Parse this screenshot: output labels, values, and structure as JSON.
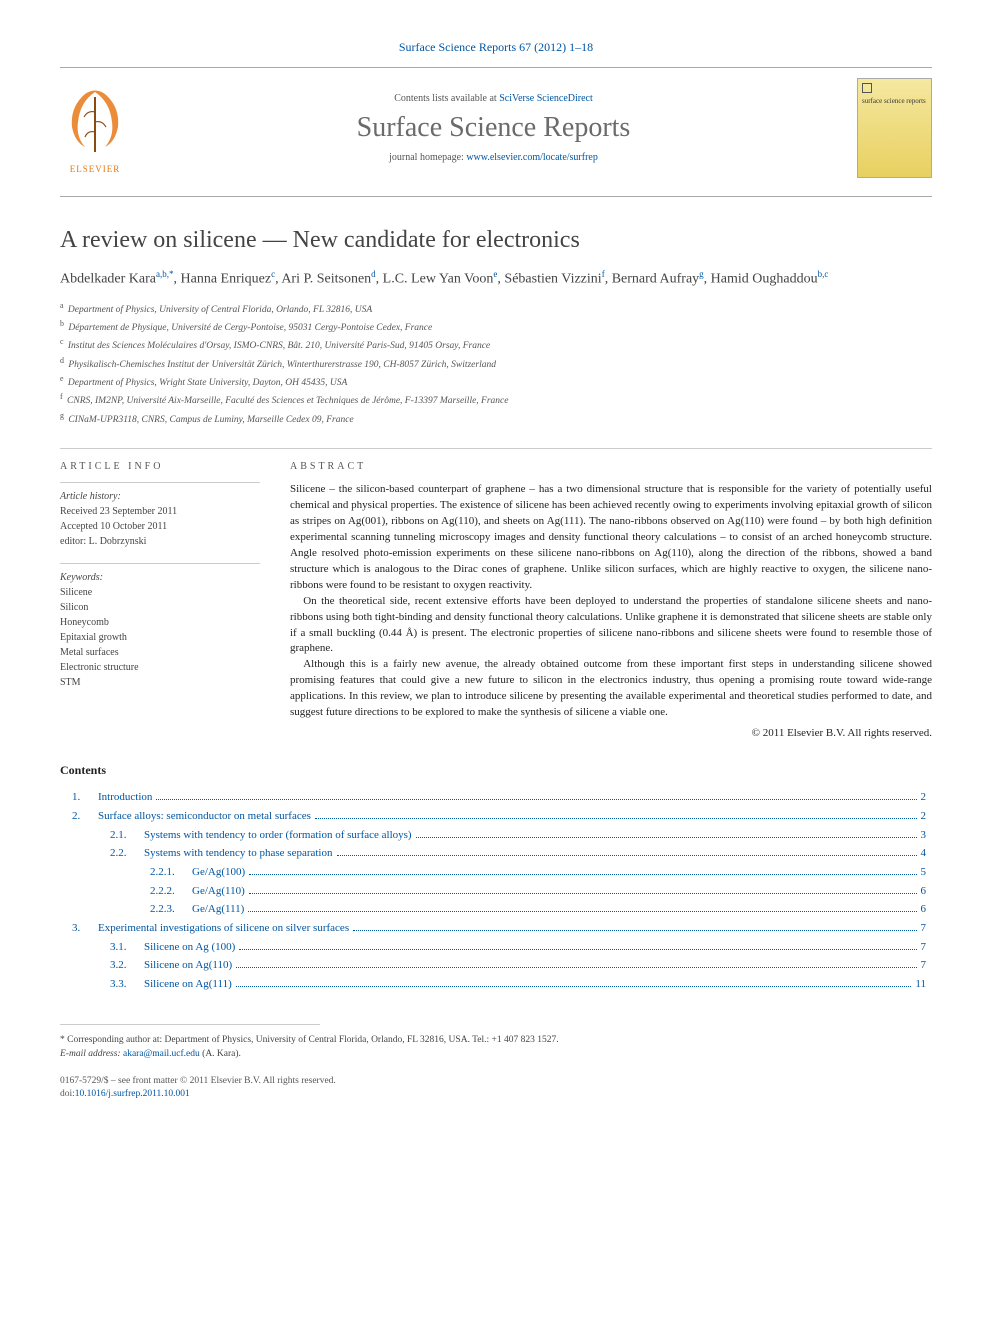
{
  "journal_ref": "Surface Science Reports 67 (2012) 1–18",
  "header": {
    "contents_prefix": "Contents lists available at ",
    "contents_link": "SciVerse ScienceDirect",
    "journal_name": "Surface Science Reports",
    "homepage_prefix": "journal homepage: ",
    "homepage_link": "www.elsevier.com/locate/surfrep",
    "logo_label": "ELSEVIER",
    "cover_label": "surface science reports"
  },
  "title": "A review on silicene — New candidate for electronics",
  "authors_html": "Abdelkader Kara|a,b,*|, Hanna Enriquez|c|, Ari P. Seitsonen|d|, L.C. Lew Yan Voon|e|, Sébastien Vizzini|f|, Bernard Aufray|g|, Hamid Oughaddou|b,c|",
  "affiliations": [
    {
      "k": "a",
      "t": "Department of Physics, University of Central Florida, Orlando, FL 32816, USA"
    },
    {
      "k": "b",
      "t": "Département de Physique, Université de Cergy-Pontoise, 95031 Cergy-Pontoise Cedex, France"
    },
    {
      "k": "c",
      "t": "Institut des Sciences Moléculaires d'Orsay, ISMO-CNRS, Bât. 210, Université Paris-Sud, 91405 Orsay, France"
    },
    {
      "k": "d",
      "t": "Physikalisch-Chemisches Institut der Universität Zürich, Winterthurerstrasse 190, CH-8057 Zürich, Switzerland"
    },
    {
      "k": "e",
      "t": "Department of Physics, Wright State University, Dayton, OH 45435, USA"
    },
    {
      "k": "f",
      "t": "CNRS, IM2NP, Université Aix-Marseille, Faculté des Sciences et Techniques de Jérôme, F-13397 Marseille, France"
    },
    {
      "k": "g",
      "t": "CINaM-UPR3118, CNRS, Campus de Luminy, Marseille Cedex 09, France"
    }
  ],
  "article_info_label": "article info",
  "abstract_label": "abstract",
  "history": {
    "head": "Article history:",
    "received": "Received 23 September 2011",
    "accepted": "Accepted 10 October 2011",
    "editor": "editor: L. Dobrzynski"
  },
  "keywords": {
    "head": "Keywords:",
    "items": [
      "Silicene",
      "Silicon",
      "Honeycomb",
      "Epitaxial growth",
      "Metal surfaces",
      "Electronic structure",
      "STM"
    ]
  },
  "abstract": {
    "p1": "Silicene – the silicon-based counterpart of graphene – has a two dimensional structure that is responsible for the variety of potentially useful chemical and physical properties. The existence of silicene has been achieved recently owing to experiments involving epitaxial growth of silicon as stripes on Ag(001), ribbons on Ag(110), and sheets on Ag(111). The nano-ribbons observed on Ag(110) were found – by both high definition experimental scanning tunneling microscopy images and density functional theory calculations – to consist of an arched honeycomb structure. Angle resolved photo-emission experiments on these silicene nano-ribbons on Ag(110), along the direction of the ribbons, showed a band structure which is analogous to the Dirac cones of graphene. Unlike silicon surfaces, which are highly reactive to oxygen, the silicene nano-ribbons were found to be resistant to oxygen reactivity.",
    "p2": "On the theoretical side, recent extensive efforts have been deployed to understand the properties of standalone silicene sheets and nano-ribbons using both tight-binding and density functional theory calculations. Unlike graphene it is demonstrated that silicene sheets are stable only if a small buckling (0.44 Å) is present. The electronic properties of silicene nano-ribbons and silicene sheets were found to resemble those of graphene.",
    "p3": "Although this is a fairly new avenue, the already obtained outcome from these important first steps in understanding silicene showed promising features that could give a new future to silicon in the electronics industry, thus opening a promising route toward wide-range applications. In this review, we plan to introduce silicene by presenting the available experimental and theoretical studies performed to date, and suggest future directions to be explored to make the synthesis of silicene a viable one.",
    "copyright": "© 2011 Elsevier B.V. All rights reserved."
  },
  "contents_label": "Contents",
  "toc": [
    {
      "lvl": 1,
      "num": "1.",
      "title": "Introduction",
      "page": "2"
    },
    {
      "lvl": 1,
      "num": "2.",
      "title": "Surface alloys: semiconductor on metal surfaces",
      "page": "2"
    },
    {
      "lvl": 2,
      "num": "2.1.",
      "title": "Systems with tendency to order (formation of surface alloys)",
      "page": "3"
    },
    {
      "lvl": 2,
      "num": "2.2.",
      "title": "Systems with tendency to phase separation",
      "page": "4"
    },
    {
      "lvl": 3,
      "num": "2.2.1.",
      "title": "Ge/Ag(100)",
      "page": "5"
    },
    {
      "lvl": 3,
      "num": "2.2.2.",
      "title": "Ge/Ag(110)",
      "page": "6"
    },
    {
      "lvl": 3,
      "num": "2.2.3.",
      "title": "Ge/Ag(111)",
      "page": "6"
    },
    {
      "lvl": 1,
      "num": "3.",
      "title": "Experimental investigations of silicene on silver surfaces",
      "page": "7"
    },
    {
      "lvl": 2,
      "num": "3.1.",
      "title": "Silicene on Ag (100)",
      "page": "7"
    },
    {
      "lvl": 2,
      "num": "3.2.",
      "title": "Silicene on Ag(110)",
      "page": "7"
    },
    {
      "lvl": 2,
      "num": "3.3.",
      "title": "Silicene on Ag(111)",
      "page": "11"
    }
  ],
  "footnote": {
    "corr_prefix": "* Corresponding author at: Department of Physics, University of Central Florida, Orlando, FL 32816, USA. Tel.: +1 407 823 1527.",
    "email_label": "E-mail address:",
    "email": "akara@mail.ucf.edu",
    "email_who": "(A. Kara)."
  },
  "bottom": {
    "issn": "0167-5729/$ – see front matter © 2011 Elsevier B.V. All rights reserved.",
    "doi_label": "doi:",
    "doi": "10.1016/j.surfrep.2011.10.001"
  },
  "colors": {
    "link": "#0056a3",
    "logo_orange": "#e67817",
    "gray": "#6b6b6b"
  }
}
